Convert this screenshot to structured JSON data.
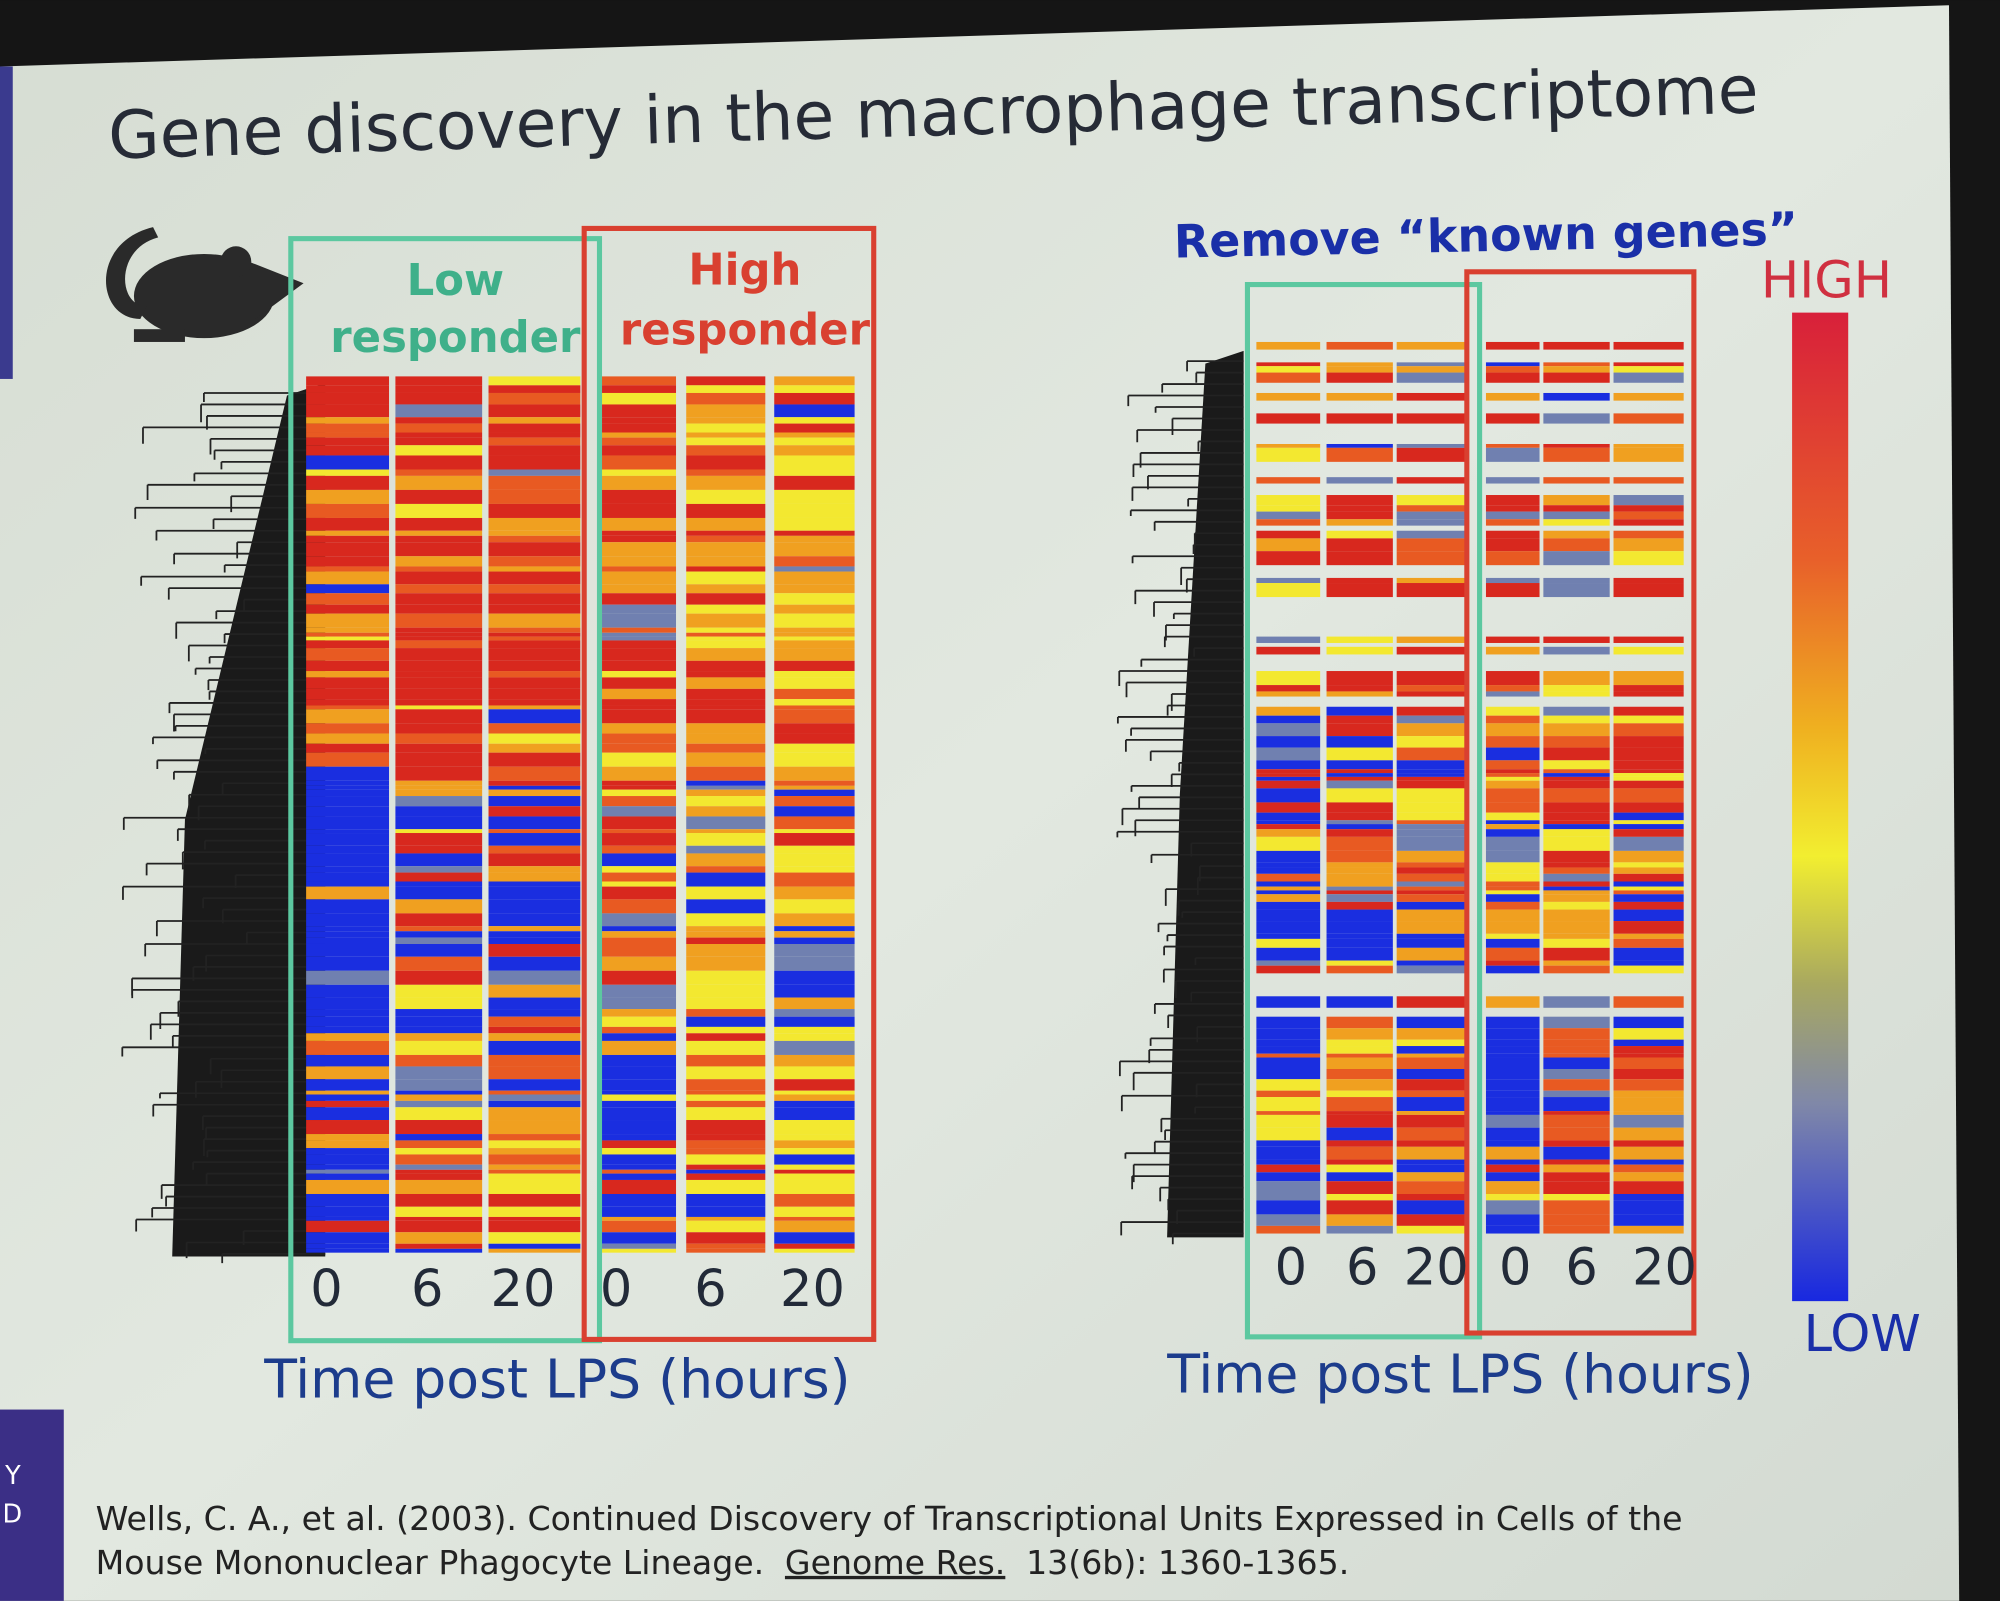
{
  "title": "Gene discovery in the macrophage transcriptome",
  "left_panel": {
    "groups": [
      {
        "label_lines": [
          "Low",
          "responder"
        ],
        "timepoints": [
          0,
          6,
          20
        ]
      },
      {
        "label_lines": [
          "High",
          "responder"
        ],
        "timepoints": [
          0,
          6,
          20
        ]
      }
    ],
    "axis_label": "Time post LPS  (hours)"
  },
  "right_panel": {
    "heading": "Remove “known genes”",
    "groups": [
      {
        "timepoints": [
          0,
          6,
          20
        ]
      },
      {
        "timepoints": [
          0,
          6,
          20
        ]
      }
    ],
    "legend": {
      "high": "HIGH",
      "low": "LOW"
    },
    "axis_label": "Time post LPS  (hours)"
  },
  "citation": {
    "line1": "Wells, C. A., et al. (2003). Continued Discovery of Transcriptional Units Expressed in Cells of the",
    "line2_start": "Mouse Mononuclear Phagocyte Lineage.",
    "journal": "Genome Res.",
    "line2_end": "13(6b): 1360-1365."
  },
  "edge_text": [
    "Y",
    "D"
  ]
}
